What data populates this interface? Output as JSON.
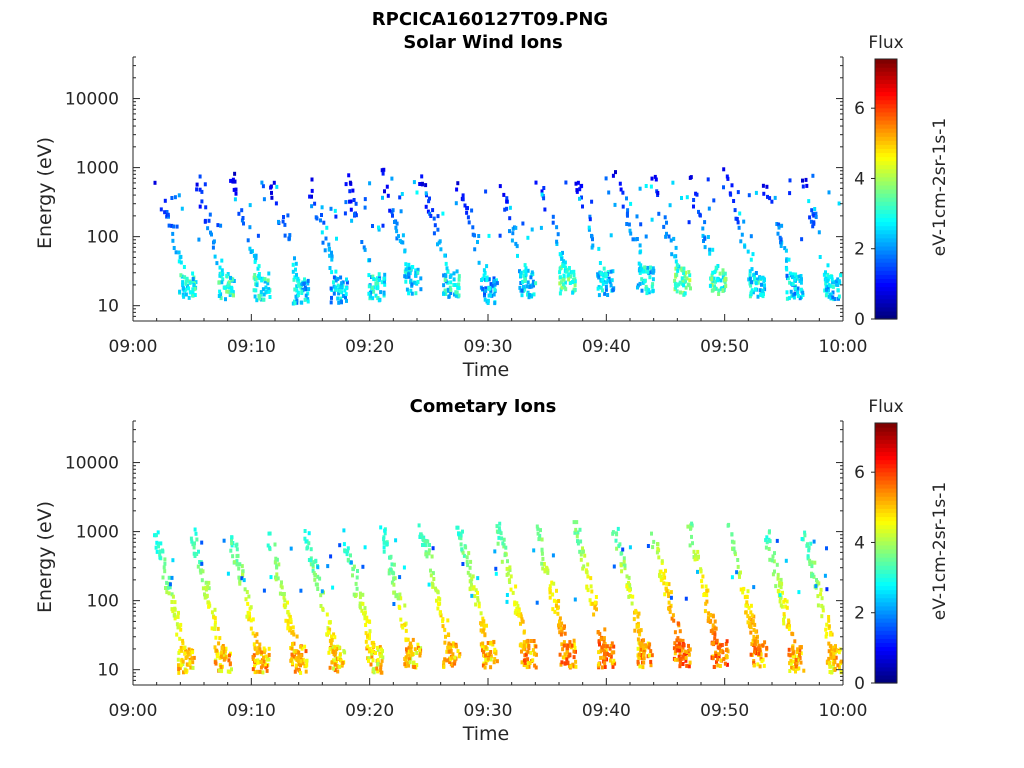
{
  "figure_title": "RPCICA160127T09.PNG",
  "chart_data": [
    {
      "type": "heatmap",
      "title": "Solar Wind Ions",
      "xlabel": "Time",
      "ylabel": "Energy (eV)",
      "xticks": [
        "09:00",
        "09:10",
        "09:20",
        "09:30",
        "09:40",
        "09:50",
        "10:00"
      ],
      "xlim": [
        "09:00",
        "10:00"
      ],
      "yscale": "log",
      "yticks": [
        10,
        100,
        1000,
        10000
      ],
      "yticklabels": [
        "10",
        "100",
        "1000",
        "10000"
      ],
      "ylim": [
        6,
        40000
      ],
      "colorbar": {
        "title": "Flux",
        "label": "eV-1cm-2sr-1s-1",
        "ticks": [
          "0",
          "2",
          "4",
          "6"
        ],
        "range": [
          0,
          7.4
        ],
        "colormap": "jet"
      },
      "bursts": [
        {
          "t": 4.5,
          "e": 20,
          "v": 3.6
        },
        {
          "t": 7.8,
          "e": 20,
          "v": 3.8
        },
        {
          "t": 10.8,
          "e": 20,
          "v": 3.7
        },
        {
          "t": 14.1,
          "e": 18,
          "v": 3.2
        },
        {
          "t": 17.3,
          "e": 18,
          "v": 3.1
        },
        {
          "t": 20.5,
          "e": 20,
          "v": 3.4
        },
        {
          "t": 23.5,
          "e": 25,
          "v": 3.3
        },
        {
          "t": 26.8,
          "e": 22,
          "v": 3.5
        },
        {
          "t": 30.0,
          "e": 18,
          "v": 3.0
        },
        {
          "t": 33.2,
          "e": 22,
          "v": 3.2
        },
        {
          "t": 36.6,
          "e": 25,
          "v": 4.1
        },
        {
          "t": 39.8,
          "e": 22,
          "v": 3.3
        },
        {
          "t": 43.2,
          "e": 25,
          "v": 3.4
        },
        {
          "t": 46.3,
          "e": 24,
          "v": 4.3
        },
        {
          "t": 49.3,
          "e": 24,
          "v": 4.0
        },
        {
          "t": 52.6,
          "e": 22,
          "v": 3.5
        },
        {
          "t": 55.8,
          "e": 20,
          "v": 3.2
        },
        {
          "t": 59.0,
          "e": 20,
          "v": 3.3
        }
      ]
    },
    {
      "type": "heatmap",
      "title": "Cometary Ions",
      "xlabel": "Time",
      "ylabel": "Energy (eV)",
      "xticks": [
        "09:00",
        "09:10",
        "09:20",
        "09:30",
        "09:40",
        "09:50",
        "10:00"
      ],
      "xlim": [
        "09:00",
        "10:00"
      ],
      "yscale": "log",
      "yticks": [
        10,
        100,
        1000,
        10000
      ],
      "yticklabels": [
        "10",
        "100",
        "1000",
        "10000"
      ],
      "ylim": [
        6,
        40000
      ],
      "colorbar": {
        "title": "Flux",
        "label": "eV-1cm-2sr-1s-1",
        "ticks": [
          "0",
          "2",
          "4",
          "6"
        ],
        "range": [
          0,
          7.4
        ],
        "colormap": "jet"
      },
      "bursts": [
        {
          "t": 4.4,
          "e": 15,
          "v": 5.6
        },
        {
          "t": 7.5,
          "e": 15,
          "v": 5.8
        },
        {
          "t": 10.7,
          "e": 15,
          "v": 5.9
        },
        {
          "t": 13.9,
          "e": 15,
          "v": 5.9
        },
        {
          "t": 17.1,
          "e": 15,
          "v": 5.7
        },
        {
          "t": 20.3,
          "e": 15,
          "v": 5.6
        },
        {
          "t": 23.5,
          "e": 18,
          "v": 5.7
        },
        {
          "t": 26.8,
          "e": 18,
          "v": 5.9
        },
        {
          "t": 30.0,
          "e": 18,
          "v": 5.9
        },
        {
          "t": 33.3,
          "e": 18,
          "v": 6.1
        },
        {
          "t": 36.6,
          "e": 18,
          "v": 6.2
        },
        {
          "t": 39.9,
          "e": 18,
          "v": 6.3
        },
        {
          "t": 43.1,
          "e": 18,
          "v": 6.0
        },
        {
          "t": 46.3,
          "e": 18,
          "v": 6.5
        },
        {
          "t": 49.5,
          "e": 18,
          "v": 6.4
        },
        {
          "t": 52.8,
          "e": 18,
          "v": 6.2
        },
        {
          "t": 56.0,
          "e": 15,
          "v": 6.0
        },
        {
          "t": 59.2,
          "e": 15,
          "v": 5.8
        }
      ]
    }
  ]
}
